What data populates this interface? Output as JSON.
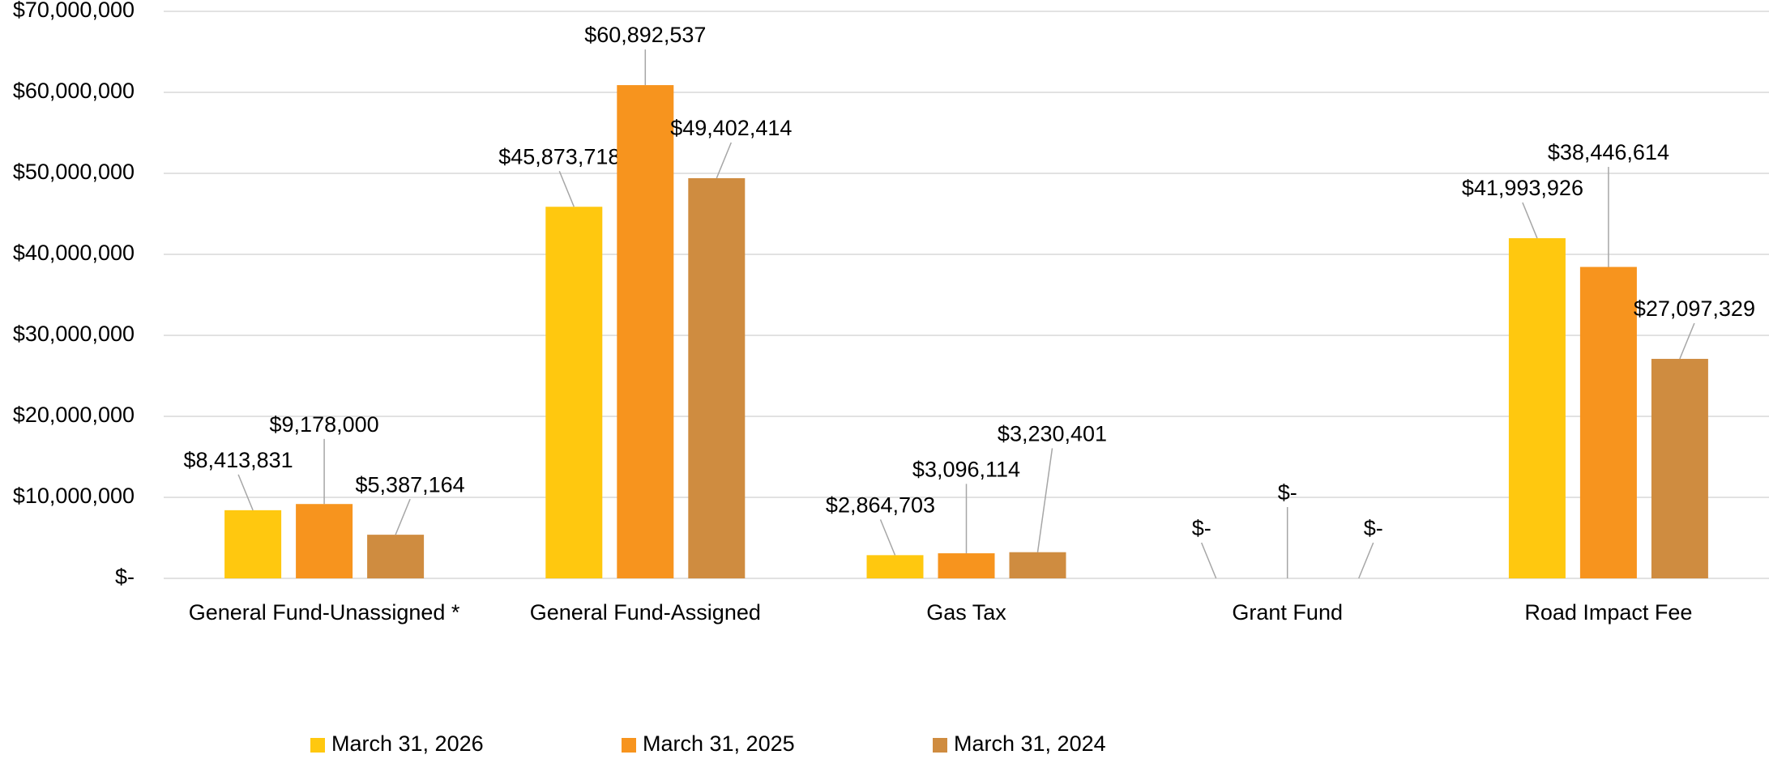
{
  "chart_data": {
    "type": "bar",
    "categories": [
      "General Fund-Unassigned *",
      "General Fund-Assigned",
      "Gas Tax",
      "Grant Fund",
      "Road Impact Fee"
    ],
    "series": [
      {
        "name": "March 31, 2026",
        "color": "#ffc80f",
        "values": [
          8413831,
          45873718,
          2864703,
          0,
          41993926
        ],
        "value_labels": [
          "$8,413,831",
          "$45,873,718",
          "$2,864,703",
          "$-",
          "$41,993,926"
        ]
      },
      {
        "name": "March 31, 2025",
        "color": "#f7941e",
        "values": [
          9178000,
          60892537,
          3096114,
          0,
          38446614
        ],
        "value_labels": [
          "$9,178,000",
          "$60,892,537",
          "$3,096,114",
          "$-",
          "$38,446,614"
        ]
      },
      {
        "name": "March 31, 2024",
        "color": "#cf8c40",
        "values": [
          5387164,
          49402414,
          3230401,
          0,
          27097329
        ],
        "value_labels": [
          "$5,387,164",
          "$49,402,414",
          "$3,230,401",
          "$-",
          "$27,097,329"
        ]
      }
    ],
    "ylim": [
      0,
      70000000
    ],
    "yticks": [
      {
        "value": 0,
        "label": "$-"
      },
      {
        "value": 10000000,
        "label": "$10,000,000"
      },
      {
        "value": 20000000,
        "label": "$20,000,000"
      },
      {
        "value": 30000000,
        "label": "$30,000,000"
      },
      {
        "value": 40000000,
        "label": "$40,000,000"
      },
      {
        "value": 50000000,
        "label": "$50,000,000"
      },
      {
        "value": 60000000,
        "label": "$60,000,000"
      },
      {
        "value": 70000000,
        "label": "$70,000,000"
      }
    ],
    "grid": true,
    "legend": "bottom"
  }
}
